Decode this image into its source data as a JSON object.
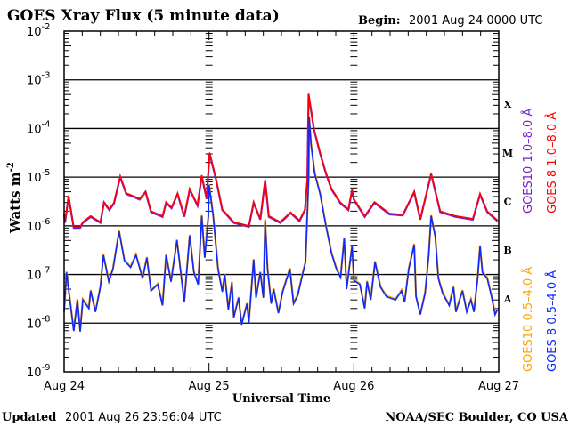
{
  "header": {
    "title": "GOES Xray Flux (5 minute data)",
    "begin_label": "Begin:",
    "begin_value": "2001 Aug 24 0000 UTC"
  },
  "footer": {
    "updated_label": "Updated",
    "updated_value": "2001 Aug 26 23:56:04 UTC",
    "credit": "NOAA/SEC Boulder, CO USA"
  },
  "chart_data": {
    "type": "line",
    "title": "GOES Xray Flux (5 minute data)",
    "xlabel": "Universal Time",
    "ylabel": "Watts m",
    "ylabel_exp": "-2",
    "yscale": "log",
    "ylim": [
      1e-09,
      0.01
    ],
    "xlim": [
      "2001-08-24 00:00",
      "2001-08-27 00:00"
    ],
    "x_ticks": [
      {
        "label": "Aug 24",
        "time": "2001-08-24 00:00"
      },
      {
        "label": "Aug 25",
        "time": "2001-08-25 00:00"
      },
      {
        "label": "Aug 26",
        "time": "2001-08-26 00:00"
      },
      {
        "label": "Aug 27",
        "time": "2001-08-27 00:00"
      }
    ],
    "y_ticks": [
      {
        "base": "10",
        "exp": "-2",
        "value": 0.01
      },
      {
        "base": "10",
        "exp": "-3",
        "value": 0.001
      },
      {
        "base": "10",
        "exp": "-4",
        "value": 0.0001
      },
      {
        "base": "10",
        "exp": "-5",
        "value": 1e-05
      },
      {
        "base": "10",
        "exp": "-6",
        "value": 1e-06
      },
      {
        "base": "10",
        "exp": "-7",
        "value": 1e-07
      },
      {
        "base": "10",
        "exp": "-8",
        "value": 1e-08
      },
      {
        "base": "10",
        "exp": "-9",
        "value": 1e-09
      }
    ],
    "grid": "horizontal at decades 1e-3 to 1e-8",
    "flare_classes": [
      {
        "label": "X",
        "low": 0.0001,
        "high": 0.001
      },
      {
        "label": "M",
        "low": 1e-05,
        "high": 0.0001
      },
      {
        "label": "C",
        "low": 1e-06,
        "high": 1e-05
      },
      {
        "label": "B",
        "low": 1e-07,
        "high": 1e-06
      },
      {
        "label": "A",
        "low": 1e-08,
        "high": 1e-07
      }
    ],
    "legend_placement": "right, rotated",
    "series": [
      {
        "name": "GOES10 1.0–8.0 Å",
        "color": "#7a1fd0",
        "legend_group": "long"
      },
      {
        "name": "GOES 8 1.0–8.0 Å",
        "color": "#ff0000",
        "legend_group": "long",
        "points": [
          [
            "2001-08-24 00:00",
            1.8e-06
          ],
          [
            "2001-08-24 00:09",
            1.2e-06
          ],
          [
            "2001-08-24 00:44",
            4.2e-06
          ],
          [
            "2001-08-24 01:36",
            9.5e-07
          ],
          [
            "2001-08-24 02:39",
            9.5e-07
          ],
          [
            "2001-08-24 03:06",
            1.2e-06
          ],
          [
            "2001-08-24 04:24",
            1.6e-06
          ],
          [
            "2001-08-24 06:00",
            1.2e-06
          ],
          [
            "2001-08-24 06:36",
            3.1e-06
          ],
          [
            "2001-08-24 07:30",
            2.2e-06
          ],
          [
            "2001-08-24 08:15",
            3e-06
          ],
          [
            "2001-08-24 09:18",
            1.05e-05
          ],
          [
            "2001-08-24 10:18",
            4.7e-06
          ],
          [
            "2001-08-24 11:30",
            4.1e-06
          ],
          [
            "2001-08-24 12:30",
            3.6e-06
          ],
          [
            "2001-08-24 13:30",
            5.1e-06
          ],
          [
            "2001-08-24 14:24",
            2e-06
          ],
          [
            "2001-08-24 16:18",
            1.6e-06
          ],
          [
            "2001-08-24 16:54",
            3.1e-06
          ],
          [
            "2001-08-24 17:48",
            2.4e-06
          ],
          [
            "2001-08-24 18:48",
            4.7e-06
          ],
          [
            "2001-08-24 19:54",
            1.6e-06
          ],
          [
            "2001-08-24 20:48",
            5.8e-06
          ],
          [
            "2001-08-24 22:06",
            2.7e-06
          ],
          [
            "2001-08-24 22:48",
            1.1e-05
          ],
          [
            "2001-08-24 23:36",
            3.7e-06
          ],
          [
            "2001-08-25 00:06",
            3.2e-05
          ],
          [
            "2001-08-25 01:12",
            8.9e-06
          ],
          [
            "2001-08-25 02:12",
            2.2e-06
          ],
          [
            "2001-08-25 04:06",
            1.2e-06
          ],
          [
            "2001-08-25 06:36",
            1e-06
          ],
          [
            "2001-08-25 07:24",
            3.1e-06
          ],
          [
            "2001-08-25 08:30",
            1.4e-06
          ],
          [
            "2001-08-25 09:18",
            8.9e-06
          ],
          [
            "2001-08-25 09:54",
            1.6e-06
          ],
          [
            "2001-08-25 11:48",
            1.2e-06
          ],
          [
            "2001-08-25 13:30",
            1.9e-06
          ],
          [
            "2001-08-25 15:00",
            1.3e-06
          ],
          [
            "2001-08-25 15:54",
            2.2e-06
          ],
          [
            "2001-08-25 16:18",
            8.9e-06
          ],
          [
            "2001-08-25 16:30",
            0.00052
          ],
          [
            "2001-08-25 17:24",
            9.8e-05
          ],
          [
            "2001-08-25 18:24",
            3.2e-05
          ],
          [
            "2001-08-25 19:24",
            1.2e-05
          ],
          [
            "2001-08-25 20:18",
            5.8e-06
          ],
          [
            "2001-08-25 21:48",
            3e-06
          ],
          [
            "2001-08-25 23:06",
            2.2e-06
          ],
          [
            "2001-08-25 23:42",
            5.6e-06
          ],
          [
            "2001-08-26 00:00",
            3.6e-06
          ],
          [
            "2001-08-26 01:48",
            1.6e-06
          ],
          [
            "2001-08-26 03:24",
            3.1e-06
          ],
          [
            "2001-08-26 05:54",
            1.8e-06
          ],
          [
            "2001-08-26 08:06",
            1.7e-06
          ],
          [
            "2001-08-26 10:00",
            5.1e-06
          ],
          [
            "2001-08-26 11:00",
            1.4e-06
          ],
          [
            "2001-08-26 12:48",
            1.2e-05
          ],
          [
            "2001-08-26 14:18",
            2e-06
          ],
          [
            "2001-08-26 16:48",
            1.6e-06
          ],
          [
            "2001-08-26 19:42",
            1.4e-06
          ],
          [
            "2001-08-26 20:54",
            4.6e-06
          ],
          [
            "2001-08-26 22:06",
            2e-06
          ],
          [
            "2001-08-26 23:48",
            1.3e-06
          ]
        ]
      },
      {
        "name": "GOES10 0.5–4.0 Å",
        "color": "#ffa500",
        "legend_group": "short"
      },
      {
        "name": "GOES 8 0.5–4.0 Å",
        "color": "#0a28ff",
        "legend_group": "short",
        "points": [
          [
            "2001-08-24 00:00",
            1.7e-08
          ],
          [
            "2001-08-24 00:24",
            1.1e-07
          ],
          [
            "2001-08-24 00:42",
            5.5e-08
          ],
          [
            "2001-08-24 01:36",
            6.9e-09
          ],
          [
            "2001-08-24 02:12",
            3e-08
          ],
          [
            "2001-08-24 02:39",
            6.7e-09
          ],
          [
            "2001-08-24 03:06",
            3e-08
          ],
          [
            "2001-08-24 04:06",
            2e-08
          ],
          [
            "2001-08-24 04:24",
            4.6e-08
          ],
          [
            "2001-08-24 05:12",
            1.7e-08
          ],
          [
            "2001-08-24 06:00",
            5.5e-08
          ],
          [
            "2001-08-24 06:30",
            2.5e-07
          ],
          [
            "2001-08-24 07:24",
            7.1e-08
          ],
          [
            "2001-08-24 08:06",
            1.3e-07
          ],
          [
            "2001-08-24 09:06",
            7.7e-07
          ],
          [
            "2001-08-24 10:00",
            1.9e-07
          ],
          [
            "2001-08-24 11:00",
            1.4e-07
          ],
          [
            "2001-08-24 11:54",
            2.5e-07
          ],
          [
            "2001-08-24 13:00",
            8.3e-08
          ],
          [
            "2001-08-24 13:42",
            2.2e-07
          ],
          [
            "2001-08-24 14:24",
            4.6e-08
          ],
          [
            "2001-08-24 15:30",
            6.2e-08
          ],
          [
            "2001-08-24 16:18",
            2.3e-08
          ],
          [
            "2001-08-24 16:54",
            2.5e-07
          ],
          [
            "2001-08-24 17:42",
            7.1e-08
          ],
          [
            "2001-08-24 18:42",
            5e-07
          ],
          [
            "2001-08-24 19:54",
            2.7e-08
          ],
          [
            "2001-08-24 20:48",
            6.3e-07
          ],
          [
            "2001-08-24 21:30",
            1.1e-07
          ],
          [
            "2001-08-24 22:12",
            6.2e-08
          ],
          [
            "2001-08-24 22:48",
            1.6e-06
          ],
          [
            "2001-08-24 23:18",
            2.2e-07
          ],
          [
            "2001-08-24 23:54",
            1.6e-06
          ],
          [
            "2001-08-25 00:00",
            6.9e-06
          ],
          [
            "2001-08-25 00:42",
            1.6e-06
          ],
          [
            "2001-08-25 01:30",
            1.3e-07
          ],
          [
            "2001-08-25 02:12",
            4.4e-08
          ],
          [
            "2001-08-25 02:36",
            1e-07
          ],
          [
            "2001-08-25 03:12",
            1.9e-08
          ],
          [
            "2001-08-25 03:48",
            6.8e-08
          ],
          [
            "2001-08-25 04:06",
            1.3e-08
          ],
          [
            "2001-08-25 04:54",
            3.3e-08
          ],
          [
            "2001-08-25 05:24",
            9.3e-09
          ],
          [
            "2001-08-25 06:18",
            2.5e-08
          ],
          [
            "2001-08-25 06:36",
            1e-08
          ],
          [
            "2001-08-25 07:24",
            2e-07
          ],
          [
            "2001-08-25 07:48",
            3.3e-08
          ],
          [
            "2001-08-25 08:30",
            1.1e-07
          ],
          [
            "2001-08-25 09:00",
            3.3e-08
          ],
          [
            "2001-08-25 09:18",
            1.3e-06
          ],
          [
            "2001-08-25 09:42",
            1.3e-07
          ],
          [
            "2001-08-25 10:18",
            2.5e-08
          ],
          [
            "2001-08-25 10:42",
            5e-08
          ],
          [
            "2001-08-25 11:30",
            1.6e-08
          ],
          [
            "2001-08-25 12:12",
            4.4e-08
          ],
          [
            "2001-08-25 13:24",
            1.3e-07
          ],
          [
            "2001-08-25 14:00",
            2.5e-08
          ],
          [
            "2001-08-25 14:42",
            3.7e-08
          ],
          [
            "2001-08-25 15:30",
            1e-07
          ],
          [
            "2001-08-25 16:00",
            1.8e-07
          ],
          [
            "2001-08-25 16:30",
            8.9e-06
          ],
          [
            "2001-08-25 16:36",
            0.00017
          ],
          [
            "2001-08-25 16:54",
            4.8e-05
          ],
          [
            "2001-08-25 17:30",
            1.2e-05
          ],
          [
            "2001-08-25 18:24",
            4.5e-06
          ],
          [
            "2001-08-25 19:24",
            9.5e-07
          ],
          [
            "2001-08-25 20:18",
            2.7e-07
          ],
          [
            "2001-08-25 21:06",
            1.3e-07
          ],
          [
            "2001-08-25 21:48",
            8.7e-08
          ],
          [
            "2001-08-25 22:24",
            5.5e-07
          ],
          [
            "2001-08-25 22:48",
            5e-08
          ],
          [
            "2001-08-25 23:42",
            3.8e-07
          ],
          [
            "2001-08-26 00:00",
            7.6e-08
          ],
          [
            "2001-08-26 01:00",
            6.2e-08
          ],
          [
            "2001-08-26 01:48",
            2e-08
          ],
          [
            "2001-08-26 02:12",
            7.1e-08
          ],
          [
            "2001-08-26 02:48",
            3e-08
          ],
          [
            "2001-08-26 03:30",
            1.8e-07
          ],
          [
            "2001-08-26 04:24",
            5.5e-08
          ],
          [
            "2001-08-26 05:24",
            3.5e-08
          ],
          [
            "2001-08-26 06:54",
            3e-08
          ],
          [
            "2001-08-26 07:54",
            4.6e-08
          ],
          [
            "2001-08-26 08:24",
            2.7e-08
          ],
          [
            "2001-08-26 09:06",
            1.3e-07
          ],
          [
            "2001-08-26 10:00",
            4.1e-07
          ],
          [
            "2001-08-26 10:18",
            3.5e-08
          ],
          [
            "2001-08-26 11:00",
            1.5e-08
          ],
          [
            "2001-08-26 11:48",
            4.1e-08
          ],
          [
            "2001-08-26 12:24",
            2.5e-07
          ],
          [
            "2001-08-26 12:48",
            1.6e-06
          ],
          [
            "2001-08-26 13:30",
            5.8e-07
          ],
          [
            "2001-08-26 14:00",
            8.3e-08
          ],
          [
            "2001-08-26 14:42",
            4.1e-08
          ],
          [
            "2001-08-26 15:48",
            2.3e-08
          ],
          [
            "2001-08-26 16:30",
            5.5e-08
          ],
          [
            "2001-08-26 16:54",
            1.7e-08
          ],
          [
            "2001-08-26 18:00",
            4.6e-08
          ],
          [
            "2001-08-26 18:42",
            1.7e-08
          ],
          [
            "2001-08-26 19:24",
            3e-08
          ],
          [
            "2001-08-26 19:54",
            1.7e-08
          ],
          [
            "2001-08-26 20:30",
            8.3e-08
          ],
          [
            "2001-08-26 20:54",
            3.8e-07
          ],
          [
            "2001-08-26 21:18",
            1.1e-07
          ],
          [
            "2001-08-26 22:06",
            8.3e-08
          ],
          [
            "2001-08-26 22:48",
            3.5e-08
          ],
          [
            "2001-08-26 23:24",
            1.5e-08
          ],
          [
            "2001-08-26 23:48",
            1.9e-08
          ]
        ]
      }
    ]
  }
}
